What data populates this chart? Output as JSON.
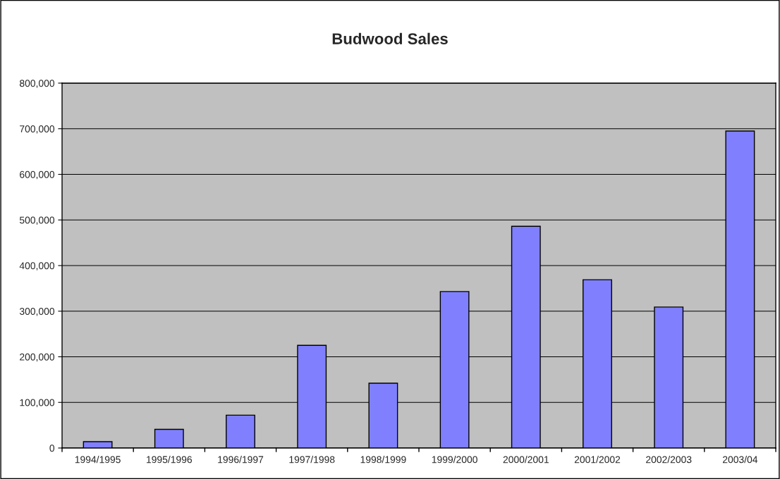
{
  "chart_data": {
    "type": "bar",
    "title": "Budwood Sales",
    "categories": [
      "1994/1995",
      "1995/1996",
      "1996/1997",
      "1997/1998",
      "1998/1999",
      "1999/2000",
      "2000/2001",
      "2001/2002",
      "2002/2003",
      "2003/04"
    ],
    "values": [
      14000,
      41000,
      72000,
      225000,
      142000,
      343000,
      486000,
      369000,
      309000,
      695000
    ],
    "color": "#8080ff",
    "ylim": [
      0,
      800000
    ],
    "yticks": [
      {
        "value": 0,
        "label": "0"
      },
      {
        "value": 100000,
        "label": "100,000"
      },
      {
        "value": 200000,
        "label": "200,000"
      },
      {
        "value": 300000,
        "label": "300,000"
      },
      {
        "value": 400000,
        "label": "400,000"
      },
      {
        "value": 500000,
        "label": "500,000"
      },
      {
        "value": 600000,
        "label": "600,000"
      },
      {
        "value": 700000,
        "label": "700,000"
      },
      {
        "value": 800000,
        "label": "800,000"
      }
    ],
    "grid": "y",
    "legend": false
  }
}
